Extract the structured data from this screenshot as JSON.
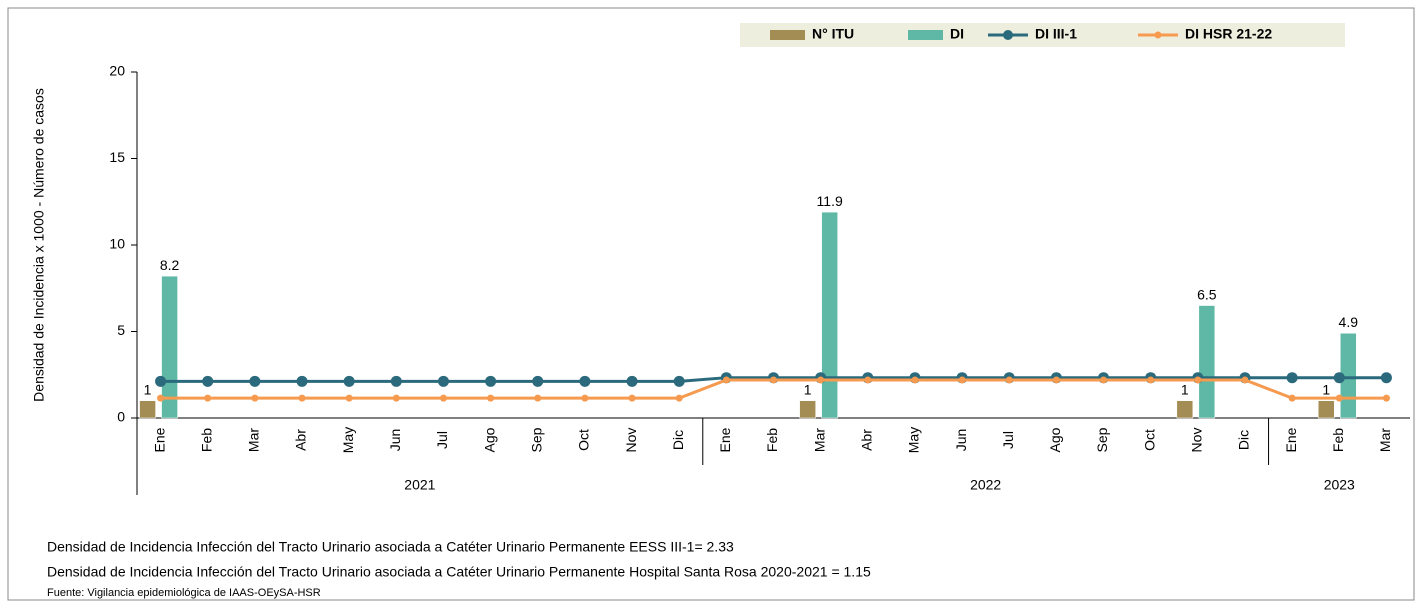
{
  "chart_data": {
    "type": "bar_line",
    "y_axis_label": "Densidad de Incidencia x 1000 - Número de casos",
    "category_groups": [
      {
        "label": "2021",
        "categories": [
          "Ene",
          "Feb",
          "Mar",
          "Abr",
          "May",
          "Jun",
          "Jul",
          "Ago",
          "Sep",
          "Oct",
          "Nov",
          "Dic"
        ]
      },
      {
        "label": "2022",
        "categories": [
          "Ene",
          "Feb",
          "Mar",
          "Abr",
          "May",
          "Jun",
          "Jul",
          "Ago",
          "Sep",
          "Oct",
          "Nov",
          "Dic"
        ]
      },
      {
        "label": "2023",
        "categories": [
          "Ene",
          "Feb",
          "Mar"
        ]
      }
    ],
    "series": [
      {
        "name": "N° ITU",
        "kind": "bar",
        "color": "#a48d55",
        "values": [
          1,
          null,
          null,
          null,
          null,
          null,
          null,
          null,
          null,
          null,
          null,
          null,
          null,
          null,
          1,
          null,
          null,
          null,
          null,
          null,
          null,
          null,
          1,
          null,
          null,
          1,
          null
        ]
      },
      {
        "name": "DI",
        "kind": "bar",
        "color": "#5fb8a6",
        "values": [
          8.2,
          null,
          null,
          null,
          null,
          null,
          null,
          null,
          null,
          null,
          null,
          null,
          null,
          null,
          11.9,
          null,
          null,
          null,
          null,
          null,
          null,
          null,
          6.5,
          null,
          null,
          4.9,
          null
        ]
      },
      {
        "name": "DI III-1",
        "kind": "line",
        "color": "#2b6a7c",
        "marker": true,
        "values": [
          2.12,
          2.12,
          2.12,
          2.12,
          2.12,
          2.12,
          2.12,
          2.12,
          2.12,
          2.12,
          2.12,
          2.12,
          2.33,
          2.33,
          2.33,
          2.33,
          2.33,
          2.33,
          2.33,
          2.33,
          2.33,
          2.33,
          2.33,
          2.33,
          2.33,
          2.33,
          2.33
        ]
      },
      {
        "name": "DI HSR 21-22",
        "kind": "line",
        "color": "#f59a4f",
        "marker": true,
        "values": [
          1.15,
          1.15,
          1.15,
          1.15,
          1.15,
          1.15,
          1.15,
          1.15,
          1.15,
          1.15,
          1.15,
          1.15,
          2.2,
          2.2,
          2.2,
          2.2,
          2.2,
          2.2,
          2.2,
          2.2,
          2.2,
          2.2,
          2.2,
          2.2,
          1.15,
          1.15,
          1.15
        ]
      }
    ],
    "ylim": [
      0,
      20
    ],
    "yticks": [
      0,
      5,
      10,
      15,
      20
    ],
    "grid": false,
    "legend": "top",
    "notes": [
      "Densidad de Incidencia Infección del Tracto Urinario asociada a Catéter Urinario Permanente EESS III-1= 2.33",
      "Densidad de Incidencia Infección del Tracto Urinario asociada a Catéter Urinario Permanente Hospital Santa Rosa 2020-2021 = 1.15"
    ],
    "source": "Fuente: Vigilancia epidemiológica de IAAS-OEySA-HSR"
  }
}
